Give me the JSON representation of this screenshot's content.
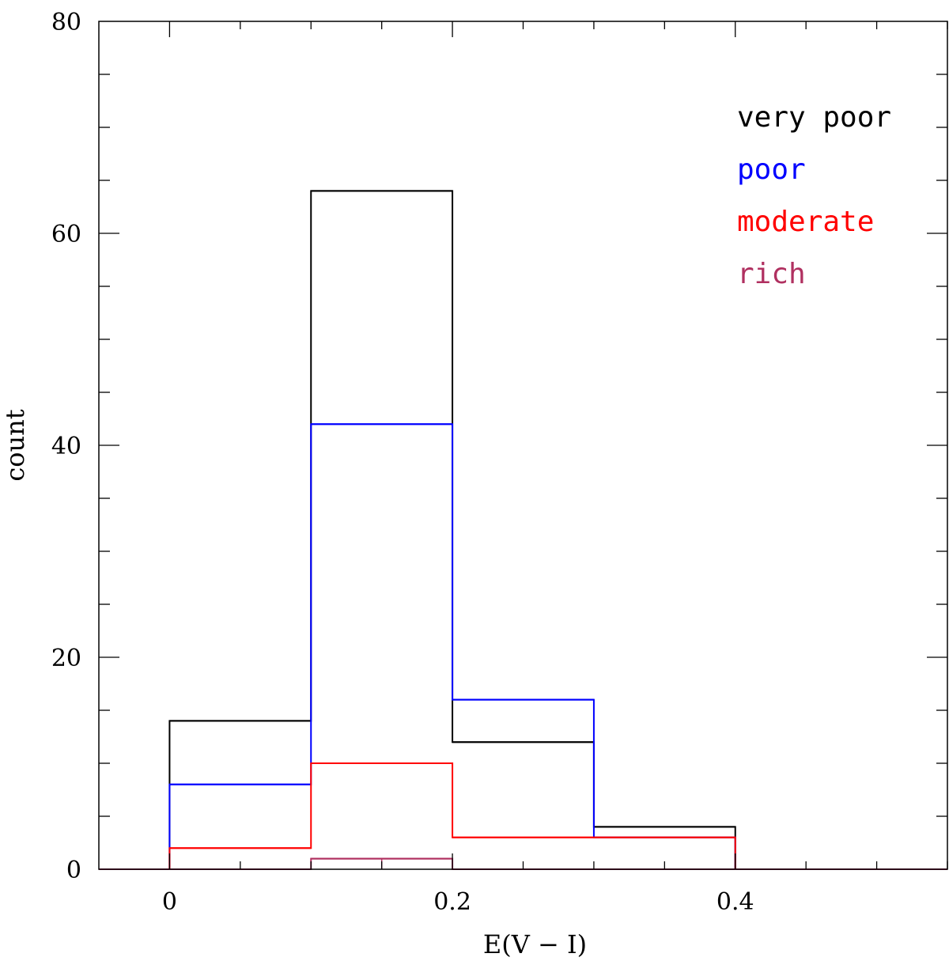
{
  "chart_data": {
    "type": "histogram",
    "title": "",
    "xlabel": "E(V − I)",
    "ylabel": "count",
    "xlim": [
      -0.05,
      0.55
    ],
    "ylim": [
      0,
      80
    ],
    "x_ticks": [
      "0",
      "0.2",
      "0.4"
    ],
    "y_ticks": [
      "0",
      "20",
      "40",
      "60",
      "80"
    ],
    "bin_edges": [
      0,
      0.1,
      0.2,
      0.3,
      0.4,
      0.5
    ],
    "legend_position": "top-right",
    "series": [
      {
        "name": "very poor",
        "color": "#000000",
        "values": [
          14,
          64,
          12,
          4,
          0
        ]
      },
      {
        "name": "poor",
        "color": "#0000ff",
        "values": [
          8,
          42,
          16,
          3,
          0
        ]
      },
      {
        "name": "moderate",
        "color": "#ff0000",
        "values": [
          2,
          10,
          3,
          3,
          0
        ]
      },
      {
        "name": "rich",
        "color": "#b03060",
        "values": [
          0,
          1,
          0,
          0,
          0
        ]
      }
    ]
  }
}
